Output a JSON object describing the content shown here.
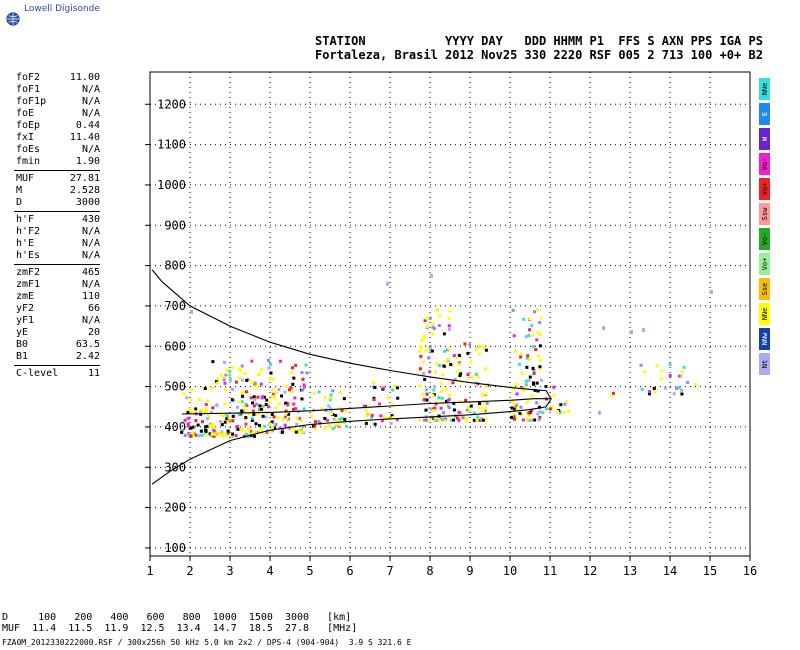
{
  "brand": "Lowell Digisonde",
  "header": {
    "line1": "STATION           YYYY DAY   DDD HHMM P1  FFS S AXN PPS IGA PS",
    "line2": "Fortaleza, Brasil 2012 Nov25 330 2220 RSF 005 2 713 100 +0+ B2"
  },
  "params": [
    {
      "k": "foF2",
      "v": "11.00"
    },
    {
      "k": "foF1",
      "v": "N/A"
    },
    {
      "k": "foF1p",
      "v": "N/A"
    },
    {
      "k": "foE",
      "v": "N/A"
    },
    {
      "k": "foEp",
      "v": "0.44"
    },
    {
      "k": "fxI",
      "v": "11.40"
    },
    {
      "k": "foEs",
      "v": "N/A"
    },
    {
      "k": "fmin",
      "v": "1.90"
    },
    {
      "sep": true
    },
    {
      "k": "MUF",
      "v": "27.81"
    },
    {
      "k": "M",
      "v": "2.528"
    },
    {
      "k": "D",
      "v": "3000"
    },
    {
      "sep": true
    },
    {
      "k": "h'F",
      "v": "430"
    },
    {
      "k": "h'F2",
      "v": "N/A"
    },
    {
      "k": "h'E",
      "v": "N/A"
    },
    {
      "k": "h'Es",
      "v": "N/A"
    },
    {
      "sep": true
    },
    {
      "k": "zmF2",
      "v": "465"
    },
    {
      "k": "zmF1",
      "v": "N/A"
    },
    {
      "k": "zmE",
      "v": "110"
    },
    {
      "k": "yF2",
      "v": "66"
    },
    {
      "k": "yF1",
      "v": "N/A"
    },
    {
      "k": "yE",
      "v": "20"
    },
    {
      "k": "B0",
      "v": "63.5"
    },
    {
      "k": "B1",
      "v": "2.42"
    },
    {
      "sep": true
    },
    {
      "k": "C-level",
      "v": "11"
    }
  ],
  "flags": [
    {
      "label": "NNe",
      "color": "#33e0e0"
    },
    {
      "label": "E",
      "color": "#2288ee"
    },
    {
      "label": "W",
      "color": "#6a22cc"
    },
    {
      "label": "Vo-",
      "color": "#ee22cc"
    },
    {
      "label": "Vo+",
      "color": "#ee2222"
    },
    {
      "label": "Ssw",
      "color": "#ff9999"
    },
    {
      "label": "Vo-",
      "color": "#22aa22"
    },
    {
      "label": "Vo+",
      "color": "#99ee99"
    },
    {
      "label": "Sse",
      "color": "#ffbb00"
    },
    {
      "label": "NNe",
      "color": "#ffff00"
    },
    {
      "label": "NNw",
      "color": "#1144aa"
    },
    {
      "label": "Nt",
      "color": "#aaaaee"
    }
  ],
  "muf_table": {
    "line1": "D     100   200   400   600   800  1000  1500  3000   [km]",
    "line2": "MUF  11.4  11.5  11.9  12.5  13.4  14.7  18.5  27.8   [MHz]"
  },
  "footer": "FZA0M_2012330222000.RSF / 300x256h 50 kHz 5.0 km 2x2 / DPS-4 (904-904)  3.9 S 321.6 E",
  "chart_data": {
    "type": "scatter",
    "title": "",
    "xlabel": "",
    "ylabel": "",
    "xlim": [
      1,
      16
    ],
    "ylim": [
      80,
      1280
    ],
    "x_ticks": [
      1,
      2,
      3,
      4,
      5,
      6,
      7,
      8,
      9,
      10,
      11,
      12,
      13,
      14,
      15,
      16
    ],
    "y_ticks": [
      100,
      200,
      300,
      400,
      500,
      600,
      700,
      800,
      900,
      1000,
      1100,
      1200
    ],
    "grid": true,
    "palette": [
      "#ffff00",
      "#ffff00",
      "#ffff00",
      "#ffff00",
      "#000000",
      "#000000",
      "#33e0e0",
      "#aaaaee",
      "#8888ee",
      "#ee2222",
      "#ee22cc"
    ],
    "clusters": [
      {
        "x0": 1.75,
        "x1": 2.5,
        "ymin": 380,
        "ymax": 500,
        "density": 1.2
      },
      {
        "x0": 2.5,
        "x1": 3.6,
        "ymin": 380,
        "ymax": 580,
        "density": 1.0
      },
      {
        "x0": 3.6,
        "x1": 4.9,
        "ymin": 390,
        "ymax": 570,
        "density": 0.9
      },
      {
        "x0": 5.0,
        "x1": 5.9,
        "ymin": 400,
        "ymax": 500,
        "density": 0.9
      },
      {
        "x0": 6.3,
        "x1": 7.2,
        "ymin": 410,
        "ymax": 520,
        "density": 0.6
      },
      {
        "x0": 7.7,
        "x1": 8.6,
        "ymin": 420,
        "ymax": 700,
        "density": 0.8
      },
      {
        "x0": 8.6,
        "x1": 9.4,
        "ymin": 420,
        "ymax": 620,
        "density": 0.7
      },
      {
        "x0": 10.0,
        "x1": 10.8,
        "ymin": 420,
        "ymax": 700,
        "density": 0.7
      },
      {
        "x0": 10.8,
        "x1": 11.5,
        "ymin": 440,
        "ymax": 540,
        "density": 0.4
      },
      {
        "x0": 12.2,
        "x1": 12.6,
        "ymin": 480,
        "ymax": 510,
        "density": 0.3
      },
      {
        "x0": 13.2,
        "x1": 14.6,
        "ymin": 485,
        "ymax": 560,
        "density": 0.4
      }
    ],
    "isolated_points": [
      {
        "x": 6.9,
        "y": 760
      },
      {
        "x": 8.0,
        "y": 780
      },
      {
        "x": 12.3,
        "y": 650
      },
      {
        "x": 13.0,
        "y": 640
      },
      {
        "x": 13.3,
        "y": 645
      },
      {
        "x": 15.0,
        "y": 740
      },
      {
        "x": 2.0,
        "y": 690
      },
      {
        "x": 12.2,
        "y": 440
      }
    ],
    "lines": [
      {
        "name": "",
        "points": [
          [
            1.05,
            790
          ],
          [
            1.3,
            760
          ],
          [
            2,
            700
          ],
          [
            3,
            650
          ],
          [
            4,
            610
          ],
          [
            5,
            580
          ],
          [
            6,
            558
          ],
          [
            7,
            540
          ],
          [
            8,
            524
          ],
          [
            9,
            510
          ],
          [
            10,
            498
          ],
          [
            10.5,
            493
          ],
          [
            10.9,
            490
          ],
          [
            11.03,
            470
          ],
          [
            10.9,
            450
          ],
          [
            10.5,
            443
          ],
          [
            10,
            438
          ],
          [
            9,
            430
          ],
          [
            8,
            425
          ],
          [
            7,
            420
          ],
          [
            6,
            414
          ],
          [
            5,
            406
          ],
          [
            4,
            392
          ],
          [
            3,
            366
          ],
          [
            2,
            320
          ],
          [
            1.5,
            290
          ],
          [
            1.05,
            258
          ]
        ]
      },
      {
        "name": "",
        "points": [
          [
            1.8,
            432
          ],
          [
            3,
            434
          ],
          [
            4,
            436
          ],
          [
            5,
            440
          ],
          [
            6,
            446
          ],
          [
            7,
            452
          ],
          [
            8,
            458
          ],
          [
            9,
            462
          ],
          [
            10,
            466
          ],
          [
            10.6,
            470
          ],
          [
            11.03,
            470
          ]
        ]
      }
    ]
  }
}
